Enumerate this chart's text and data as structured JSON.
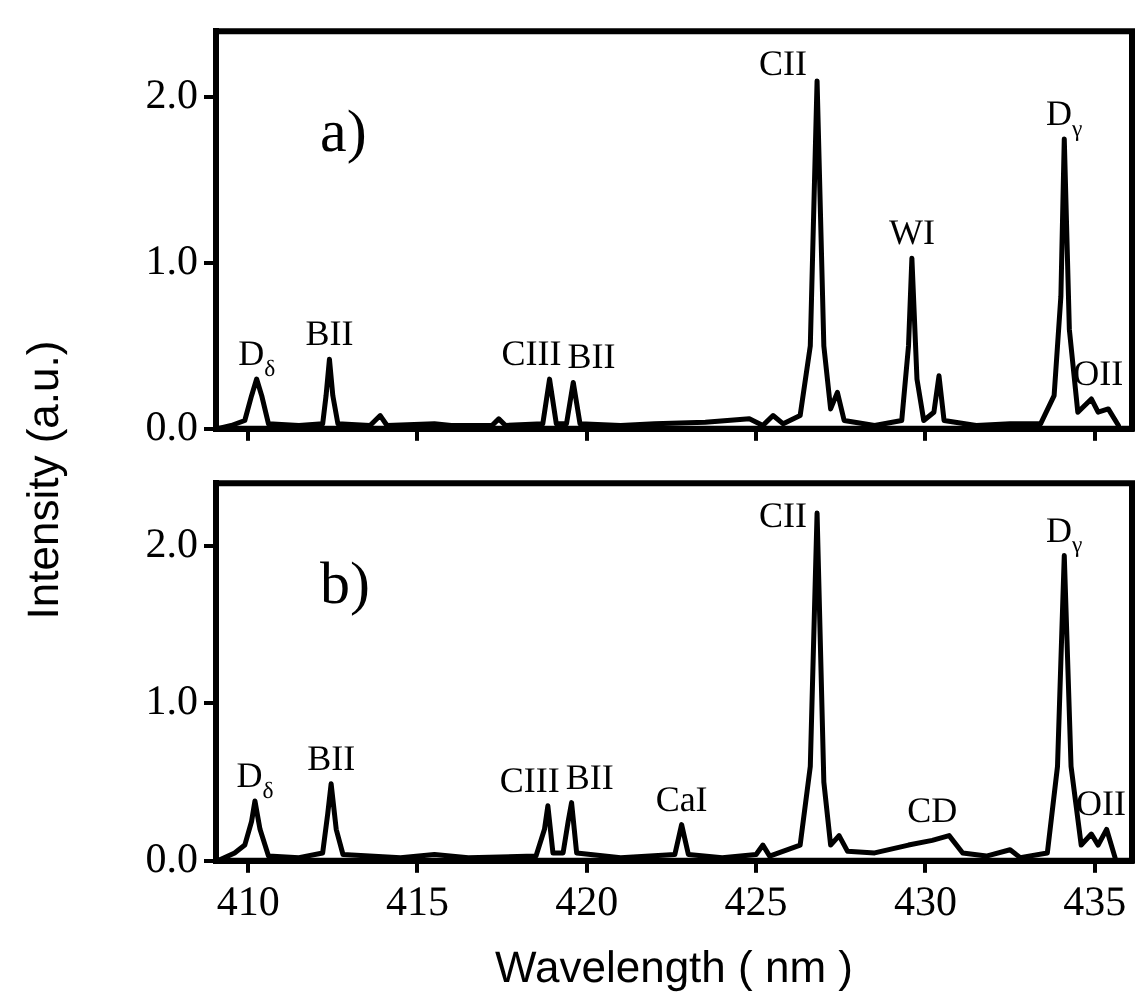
{
  "chart_data": [
    {
      "type": "line",
      "ylabel": "Intensity (a.u.)",
      "xlim": [
        409.05,
        436.1
      ],
      "xticks": [
        410,
        415,
        420,
        425,
        430,
        435
      ],
      "ylim": [
        0,
        2.4
      ],
      "yticks": [
        {
          "value": 0,
          "label": "0.0"
        },
        {
          "value": 1,
          "label": "1.0"
        },
        {
          "value": 2,
          "label": "2.0"
        }
      ],
      "tick_labels": "y",
      "grid": false,
      "legend": false,
      "marker": "none",
      "line_style": "solid",
      "series": [
        {
          "color": "#000000",
          "x": [
            409.1,
            409.5,
            409.9,
            410.1,
            410.25,
            410.4,
            410.6,
            411.5,
            412.2,
            412.3,
            412.4,
            412.5,
            412.65,
            413.6,
            413.9,
            414.1,
            415.5,
            416,
            417.2,
            417.4,
            417.6,
            418.7,
            418.9,
            419.1,
            419.4,
            419.6,
            419.8,
            421,
            422,
            423.5,
            424.8,
            425.2,
            425.5,
            425.8,
            426.3,
            426.6,
            426.8,
            427.0,
            427.2,
            427.4,
            427.6,
            428.5,
            429.3,
            429.5,
            429.6,
            429.75,
            429.95,
            430.25,
            430.4,
            430.55,
            431.5,
            432.5,
            433.4,
            433.8,
            434.0,
            434.1,
            434.25,
            434.5,
            434.9,
            435.1,
            435.4,
            435.7
          ],
          "values": [
            0,
            0.02,
            0.05,
            0.2,
            0.3,
            0.2,
            0.03,
            0.02,
            0.03,
            0.2,
            0.42,
            0.2,
            0.03,
            0.02,
            0.08,
            0.02,
            0.03,
            0.02,
            0.02,
            0.06,
            0.02,
            0.03,
            0.3,
            0.03,
            0.03,
            0.28,
            0.03,
            0.02,
            0.03,
            0.04,
            0.06,
            0.02,
            0.08,
            0.03,
            0.08,
            0.5,
            2.1,
            0.5,
            0.12,
            0.22,
            0.05,
            0.02,
            0.05,
            0.5,
            1.03,
            0.3,
            0.05,
            0.1,
            0.32,
            0.05,
            0.02,
            0.03,
            0.03,
            0.2,
            0.8,
            1.75,
            0.6,
            0.1,
            0.18,
            0.1,
            0.12,
            0.02
          ]
        }
      ],
      "annotations": [
        "a)",
        {
          "text": "D$_{δ}$",
          "x": 410.25,
          "y": 0.3
        },
        {
          "text": "BII",
          "x": 412.4,
          "y": 0.42
        },
        {
          "text": "CIII",
          "x": 418.9,
          "y": 0.3
        },
        {
          "text": "BII",
          "x": 419.6,
          "y": 0.28
        },
        {
          "text": "CII",
          "x": 426.8,
          "y": 2.1
        },
        {
          "text": "WI",
          "x": 429.6,
          "y": 1.03
        },
        {
          "text": "D$_{γ}$",
          "x": 434.1,
          "y": 1.75
        },
        {
          "text": "OII",
          "x": 435.1,
          "y": 0.18
        }
      ]
    },
    {
      "type": "line",
      "xlabel": "Wavelength ( nm )",
      "xlim": [
        409.05,
        436.1
      ],
      "xticks": [
        410,
        415,
        420,
        425,
        430,
        435
      ],
      "ylim": [
        0,
        2.4
      ],
      "yticks": [
        {
          "value": 0,
          "label": "0.0"
        },
        {
          "value": 1,
          "label": "1.0"
        },
        {
          "value": 2,
          "label": "2.0"
        }
      ],
      "grid": false,
      "legend": false,
      "marker": "none",
      "line_style": "solid",
      "series": [
        {
          "color": "#000000",
          "x": [
            409.1,
            409.6,
            409.9,
            410.1,
            410.2,
            410.35,
            410.6,
            411.5,
            412.2,
            412.35,
            412.45,
            412.6,
            412.8,
            414.5,
            415.5,
            416.5,
            418.5,
            418.75,
            418.85,
            419.0,
            419.3,
            419.45,
            419.55,
            419.7,
            421,
            422.6,
            422.8,
            423.0,
            424,
            425.0,
            425.2,
            425.4,
            426.3,
            426.6,
            426.8,
            427.0,
            427.2,
            427.45,
            427.7,
            428.5,
            429.5,
            430.2,
            430.7,
            431.1,
            431.8,
            432.5,
            432.8,
            433.6,
            433.9,
            434.1,
            434.3,
            434.6,
            434.9,
            435.1,
            435.35,
            435.6
          ],
          "values": [
            0,
            0.05,
            0.1,
            0.25,
            0.38,
            0.2,
            0.03,
            0.02,
            0.05,
            0.3,
            0.49,
            0.2,
            0.04,
            0.02,
            0.04,
            0.02,
            0.03,
            0.2,
            0.35,
            0.05,
            0.05,
            0.25,
            0.37,
            0.05,
            0.02,
            0.04,
            0.23,
            0.04,
            0.02,
            0.04,
            0.1,
            0.03,
            0.1,
            0.6,
            2.21,
            0.5,
            0.1,
            0.16,
            0.06,
            0.05,
            0.1,
            0.13,
            0.16,
            0.05,
            0.03,
            0.07,
            0.02,
            0.05,
            0.6,
            1.94,
            0.6,
            0.1,
            0.17,
            0.1,
            0.2,
            0.02
          ]
        }
      ],
      "annotations": [
        "b)",
        {
          "text": "D$_{δ}$",
          "x": 410.2,
          "y": 0.38
        },
        {
          "text": "BII",
          "x": 412.45,
          "y": 0.49
        },
        {
          "text": "CIII",
          "x": 418.85,
          "y": 0.35
        },
        {
          "text": "BII",
          "x": 419.55,
          "y": 0.37
        },
        {
          "text": "CaI",
          "x": 422.8,
          "y": 0.23
        },
        {
          "text": "CII",
          "x": 426.8,
          "y": 2.21
        },
        {
          "text": "CD",
          "x": 430.2,
          "y": 0.16
        },
        {
          "text": "D$_{γ}$",
          "x": 434.1,
          "y": 1.94
        },
        {
          "text": "OII",
          "x": 435.35,
          "y": 0.2
        }
      ]
    }
  ]
}
